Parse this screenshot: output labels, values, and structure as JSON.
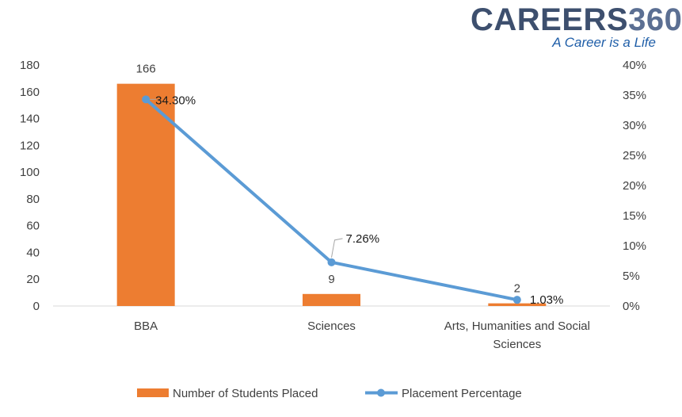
{
  "logo": {
    "brand_word": "CAREERS",
    "brand_number": "360",
    "tagline": "A Career is a Life"
  },
  "colors": {
    "bar": "#ed7d31",
    "line": "#5b9bd5",
    "text": "#404040"
  },
  "chart_data": {
    "type": "bar",
    "categories": [
      "BBA",
      "Sciences",
      "Arts, Humanities and Social Sciences"
    ],
    "category_lines": [
      [
        "BBA"
      ],
      [
        "Sciences"
      ],
      [
        "Arts, Humanities and Social",
        "Sciences"
      ]
    ],
    "series": [
      {
        "name": "Number of Students Placed",
        "type": "bar",
        "axis": "left",
        "values": [
          166,
          9,
          2
        ],
        "data_labels": [
          "166",
          "9",
          "2"
        ]
      },
      {
        "name": "Placement Percentage",
        "type": "line",
        "axis": "right",
        "values": [
          34.3,
          7.26,
          1.03
        ],
        "data_labels": [
          "34.30%",
          "7.26%",
          "1.03%"
        ]
      }
    ],
    "y_left": {
      "min": 0,
      "max": 180,
      "step": 20,
      "ticks": [
        "0",
        "20",
        "40",
        "60",
        "80",
        "100",
        "120",
        "140",
        "160",
        "180"
      ]
    },
    "y_right": {
      "min": 0,
      "max": 40,
      "step": 5,
      "ticks": [
        "0%",
        "5%",
        "10%",
        "15%",
        "20%",
        "25%",
        "30%",
        "35%",
        "40%"
      ]
    },
    "grid": false,
    "legend": "bottom"
  }
}
